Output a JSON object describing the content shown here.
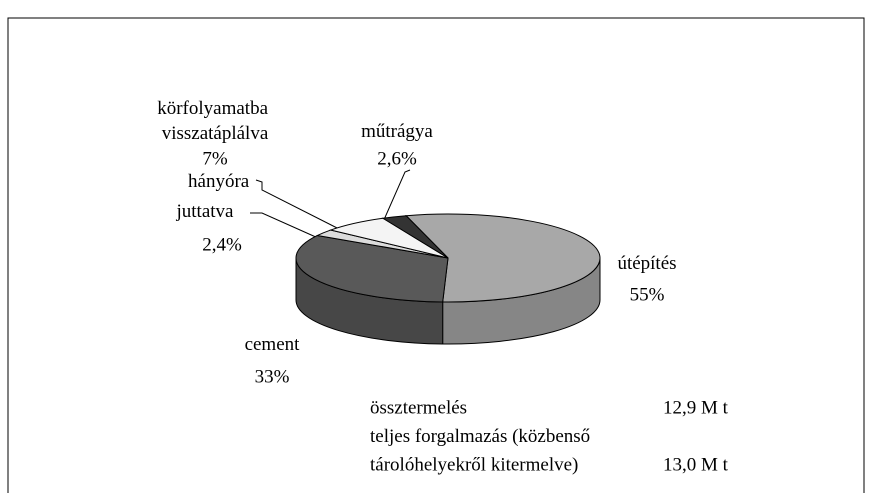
{
  "chart_data": {
    "type": "pie",
    "categories": [
      "útépítés",
      "cement",
      "hányóra juttatva",
      "körfolyamatba visszatáplálva",
      "műtrágya"
    ],
    "values": [
      55,
      33,
      2.4,
      7,
      2.6
    ],
    "value_labels": [
      "55%",
      "33%",
      "2,4%",
      "7%",
      "2,6%"
    ],
    "colors": [
      "#a8a8a8",
      "#595959",
      "#dcdcdc",
      "#f4f4f4",
      "#333333"
    ],
    "notes": [
      {
        "lines": [
          "össztermelés"
        ],
        "value": "12,9 M t"
      },
      {
        "lines": [
          "teljes forgalmazás (közbenső",
          "tárolóhelyekről kitermelve)"
        ],
        "value": "13,0 M t"
      }
    ]
  }
}
